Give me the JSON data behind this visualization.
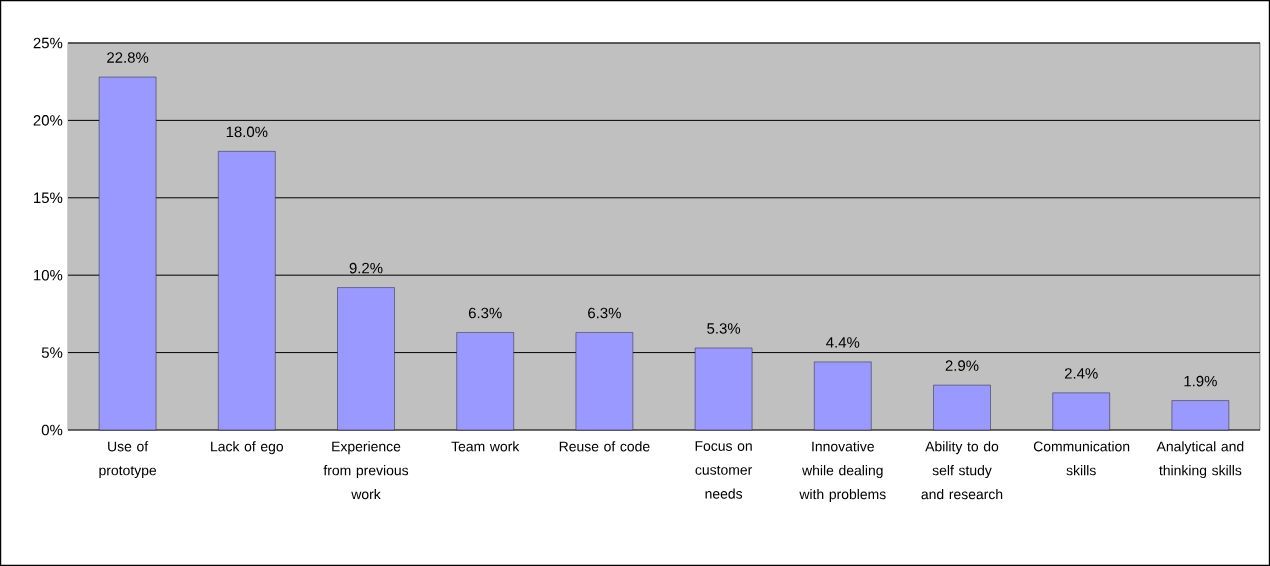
{
  "chart_data": {
    "type": "bar",
    "categories": [
      "Use of prototype",
      "Lack of ego",
      "Experience from previous work",
      "Team work",
      "Reuse of code",
      "Focus on customer needs",
      "Innovative while dealing with problems",
      "Ability to do self study and research",
      "Communication skills",
      "Analytical and thinking skills"
    ],
    "values": [
      22.8,
      18.0,
      9.2,
      6.3,
      6.3,
      5.3,
      4.4,
      2.9,
      2.4,
      1.9
    ],
    "value_labels": [
      "22.8%",
      "18.0%",
      "9.2%",
      "6.3%",
      "6.3%",
      "5.3%",
      "4.4%",
      "2.9%",
      "2.4%",
      "1.9%"
    ],
    "color": "#9999ff",
    "ylim": [
      0,
      25
    ],
    "yticks": [
      {
        "value": 0,
        "label": "0%"
      },
      {
        "value": 5,
        "label": "5%"
      },
      {
        "value": 10,
        "label": "10%"
      },
      {
        "value": 15,
        "label": "15%"
      },
      {
        "value": 20,
        "label": "20%"
      },
      {
        "value": 25,
        "label": "25%"
      }
    ],
    "grid": "y"
  }
}
